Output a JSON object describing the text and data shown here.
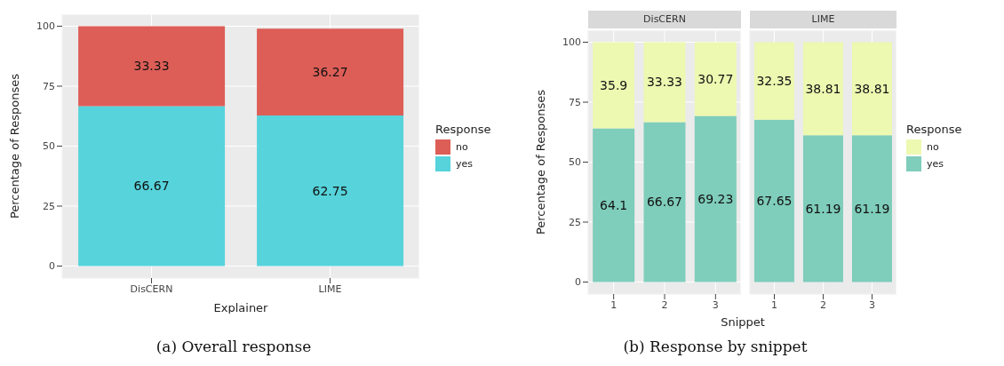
{
  "chart_data": [
    {
      "type": "bar",
      "stacked": true,
      "categories": [
        "DisCERN",
        "LIME"
      ],
      "xlabel": "Explainer",
      "ylabel": "Percentage of Responses",
      "legend_title": "Response",
      "legend": "right",
      "grid": true,
      "data_labels": true,
      "ylim": [
        -5,
        105
      ],
      "yticks": [
        0,
        25,
        50,
        75,
        100
      ],
      "series": [
        {
          "name": "yes",
          "color": "#56d3db",
          "values": [
            66.67,
            62.75
          ]
        },
        {
          "name": "no",
          "color": "#dd5e57",
          "values": [
            33.33,
            36.27
          ]
        }
      ],
      "annotations": [
        "(a) Overall response"
      ]
    },
    {
      "type": "bar",
      "stacked": true,
      "title": "DisCERN",
      "categories": [
        "1",
        "2",
        "3"
      ],
      "xlabel": "Snippet",
      "ylabel": "Percentage of Responses",
      "legend": false,
      "grid": true,
      "data_labels": true,
      "ylim": [
        -5,
        105
      ],
      "yticks": [
        0,
        25,
        50,
        75,
        100
      ],
      "series": [
        {
          "color": "#7fcdbb",
          "values": [
            64.1,
            66.67,
            69.23
          ]
        },
        {
          "color": "#edf8b1",
          "values": [
            35.9,
            33.33,
            30.77
          ]
        }
      ],
      "annotations": [
        "(b) Response by snippet"
      ]
    },
    {
      "type": "bar",
      "stacked": true,
      "title": "LIME",
      "categories": [
        "1",
        "2",
        "3"
      ],
      "legend_title": "Response",
      "legend": "right",
      "grid": true,
      "data_labels": true,
      "tick_labels": "x",
      "ylim": [
        -5,
        105
      ],
      "yticks": [
        0,
        25,
        50,
        75,
        100
      ],
      "series": [
        {
          "name": "yes",
          "color": "#7fcdbb",
          "values": [
            67.65,
            61.19,
            61.19
          ]
        },
        {
          "name": "no",
          "color": "#edf8b1",
          "values": [
            32.35,
            38.81,
            38.81
          ]
        }
      ]
    }
  ]
}
